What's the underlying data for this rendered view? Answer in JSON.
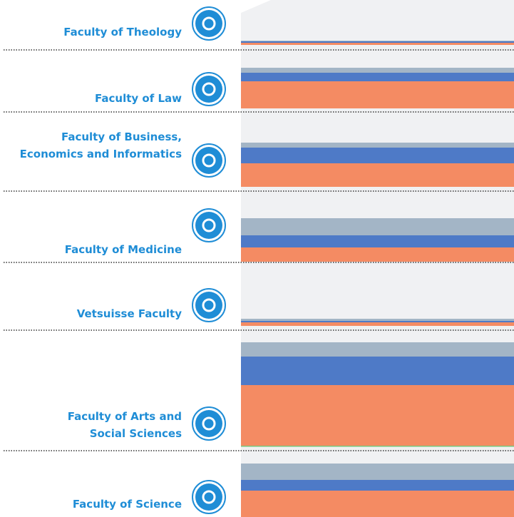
{
  "faculties": [
    {
      "lines": [
        "Faculty of Theology"
      ]
    },
    {
      "lines": [
        "Faculty of Law"
      ]
    },
    {
      "lines": [
        "Faculty of Business,",
        "Economics and Informatics"
      ]
    },
    {
      "lines": [
        "Faculty of Medicine"
      ]
    },
    {
      "lines": [
        "Vetsuisse Faculty"
      ]
    },
    {
      "lines": [
        "Faculty of Arts and",
        "Social Sciences"
      ]
    },
    {
      "lines": [
        "Faculty of Science"
      ]
    }
  ]
}
